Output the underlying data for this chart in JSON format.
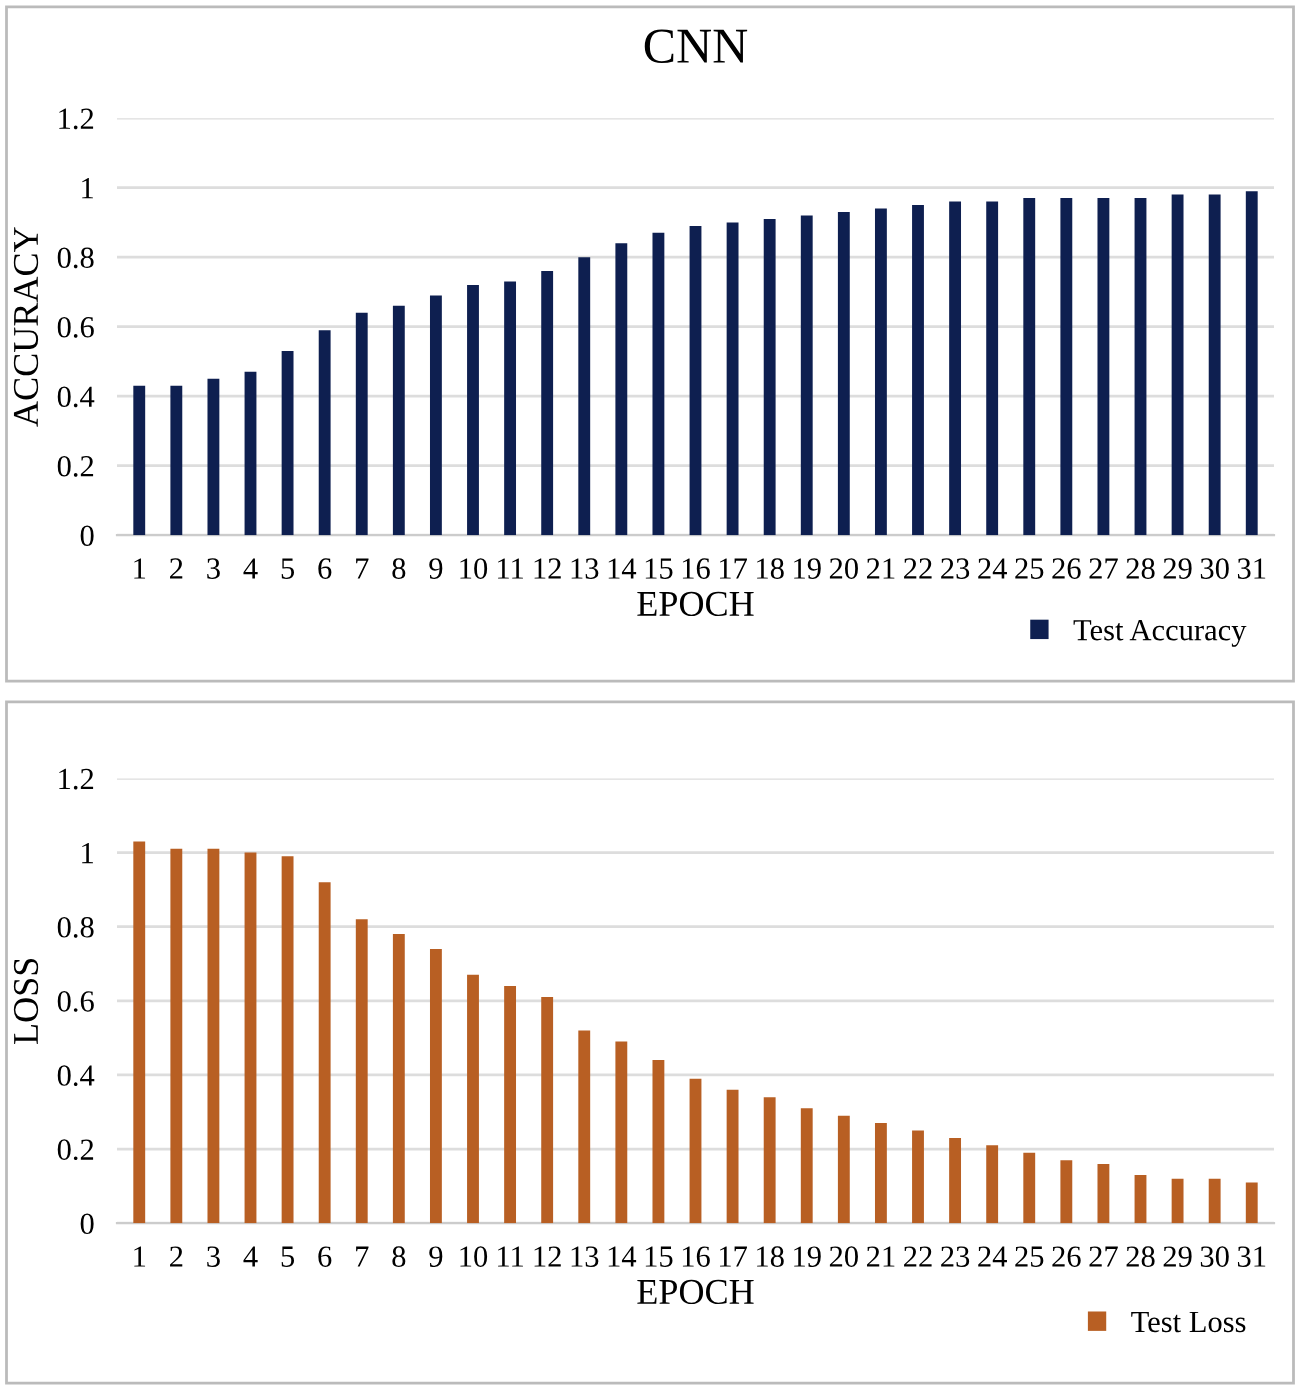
{
  "chart_data": [
    {
      "type": "bar",
      "title": "CNN",
      "xlabel": "EPOCH",
      "ylabel": "ACCURACY",
      "categories": [
        "1",
        "2",
        "3",
        "4",
        "5",
        "6",
        "7",
        "8",
        "9",
        "10",
        "11",
        "12",
        "13",
        "14",
        "15",
        "16",
        "17",
        "18",
        "19",
        "20",
        "21",
        "22",
        "23",
        "24",
        "25",
        "26",
        "27",
        "28",
        "29",
        "30",
        "31"
      ],
      "series": [
        {
          "name": "Test Accuracy",
          "color": "#0e1f50",
          "values": [
            0.43,
            0.43,
            0.45,
            0.47,
            0.53,
            0.59,
            0.64,
            0.66,
            0.69,
            0.72,
            0.73,
            0.76,
            0.8,
            0.84,
            0.87,
            0.89,
            0.9,
            0.91,
            0.92,
            0.93,
            0.94,
            0.95,
            0.96,
            0.96,
            0.97,
            0.97,
            0.97,
            0.97,
            0.98,
            0.98,
            0.99
          ]
        }
      ],
      "ylim": [
        0,
        1.2
      ],
      "yticks": [
        0,
        0.2,
        0.4,
        0.6,
        0.8,
        1,
        1.2
      ],
      "grid": "y",
      "legend": "bottom right"
    },
    {
      "type": "bar",
      "xlabel": "EPOCH",
      "ylabel": "LOSS",
      "categories": [
        "1",
        "2",
        "3",
        "4",
        "5",
        "6",
        "7",
        "8",
        "9",
        "10",
        "11",
        "12",
        "13",
        "14",
        "15",
        "16",
        "17",
        "18",
        "19",
        "20",
        "21",
        "22",
        "23",
        "24",
        "25",
        "26",
        "27",
        "28",
        "29",
        "30",
        "31"
      ],
      "series": [
        {
          "name": "Test Loss",
          "color": "#b85f23",
          "values": [
            1.03,
            1.01,
            1.01,
            1.0,
            0.99,
            0.92,
            0.82,
            0.78,
            0.74,
            0.67,
            0.64,
            0.61,
            0.52,
            0.49,
            0.44,
            0.39,
            0.36,
            0.34,
            0.31,
            0.29,
            0.27,
            0.25,
            0.23,
            0.21,
            0.19,
            0.17,
            0.16,
            0.13,
            0.12,
            0.12,
            0.11
          ]
        }
      ],
      "ylim": [
        0,
        1.2
      ],
      "yticks": [
        0,
        0.2,
        0.4,
        0.6,
        0.8,
        1,
        1.2
      ],
      "grid": "y",
      "legend": "bottom right"
    }
  ]
}
